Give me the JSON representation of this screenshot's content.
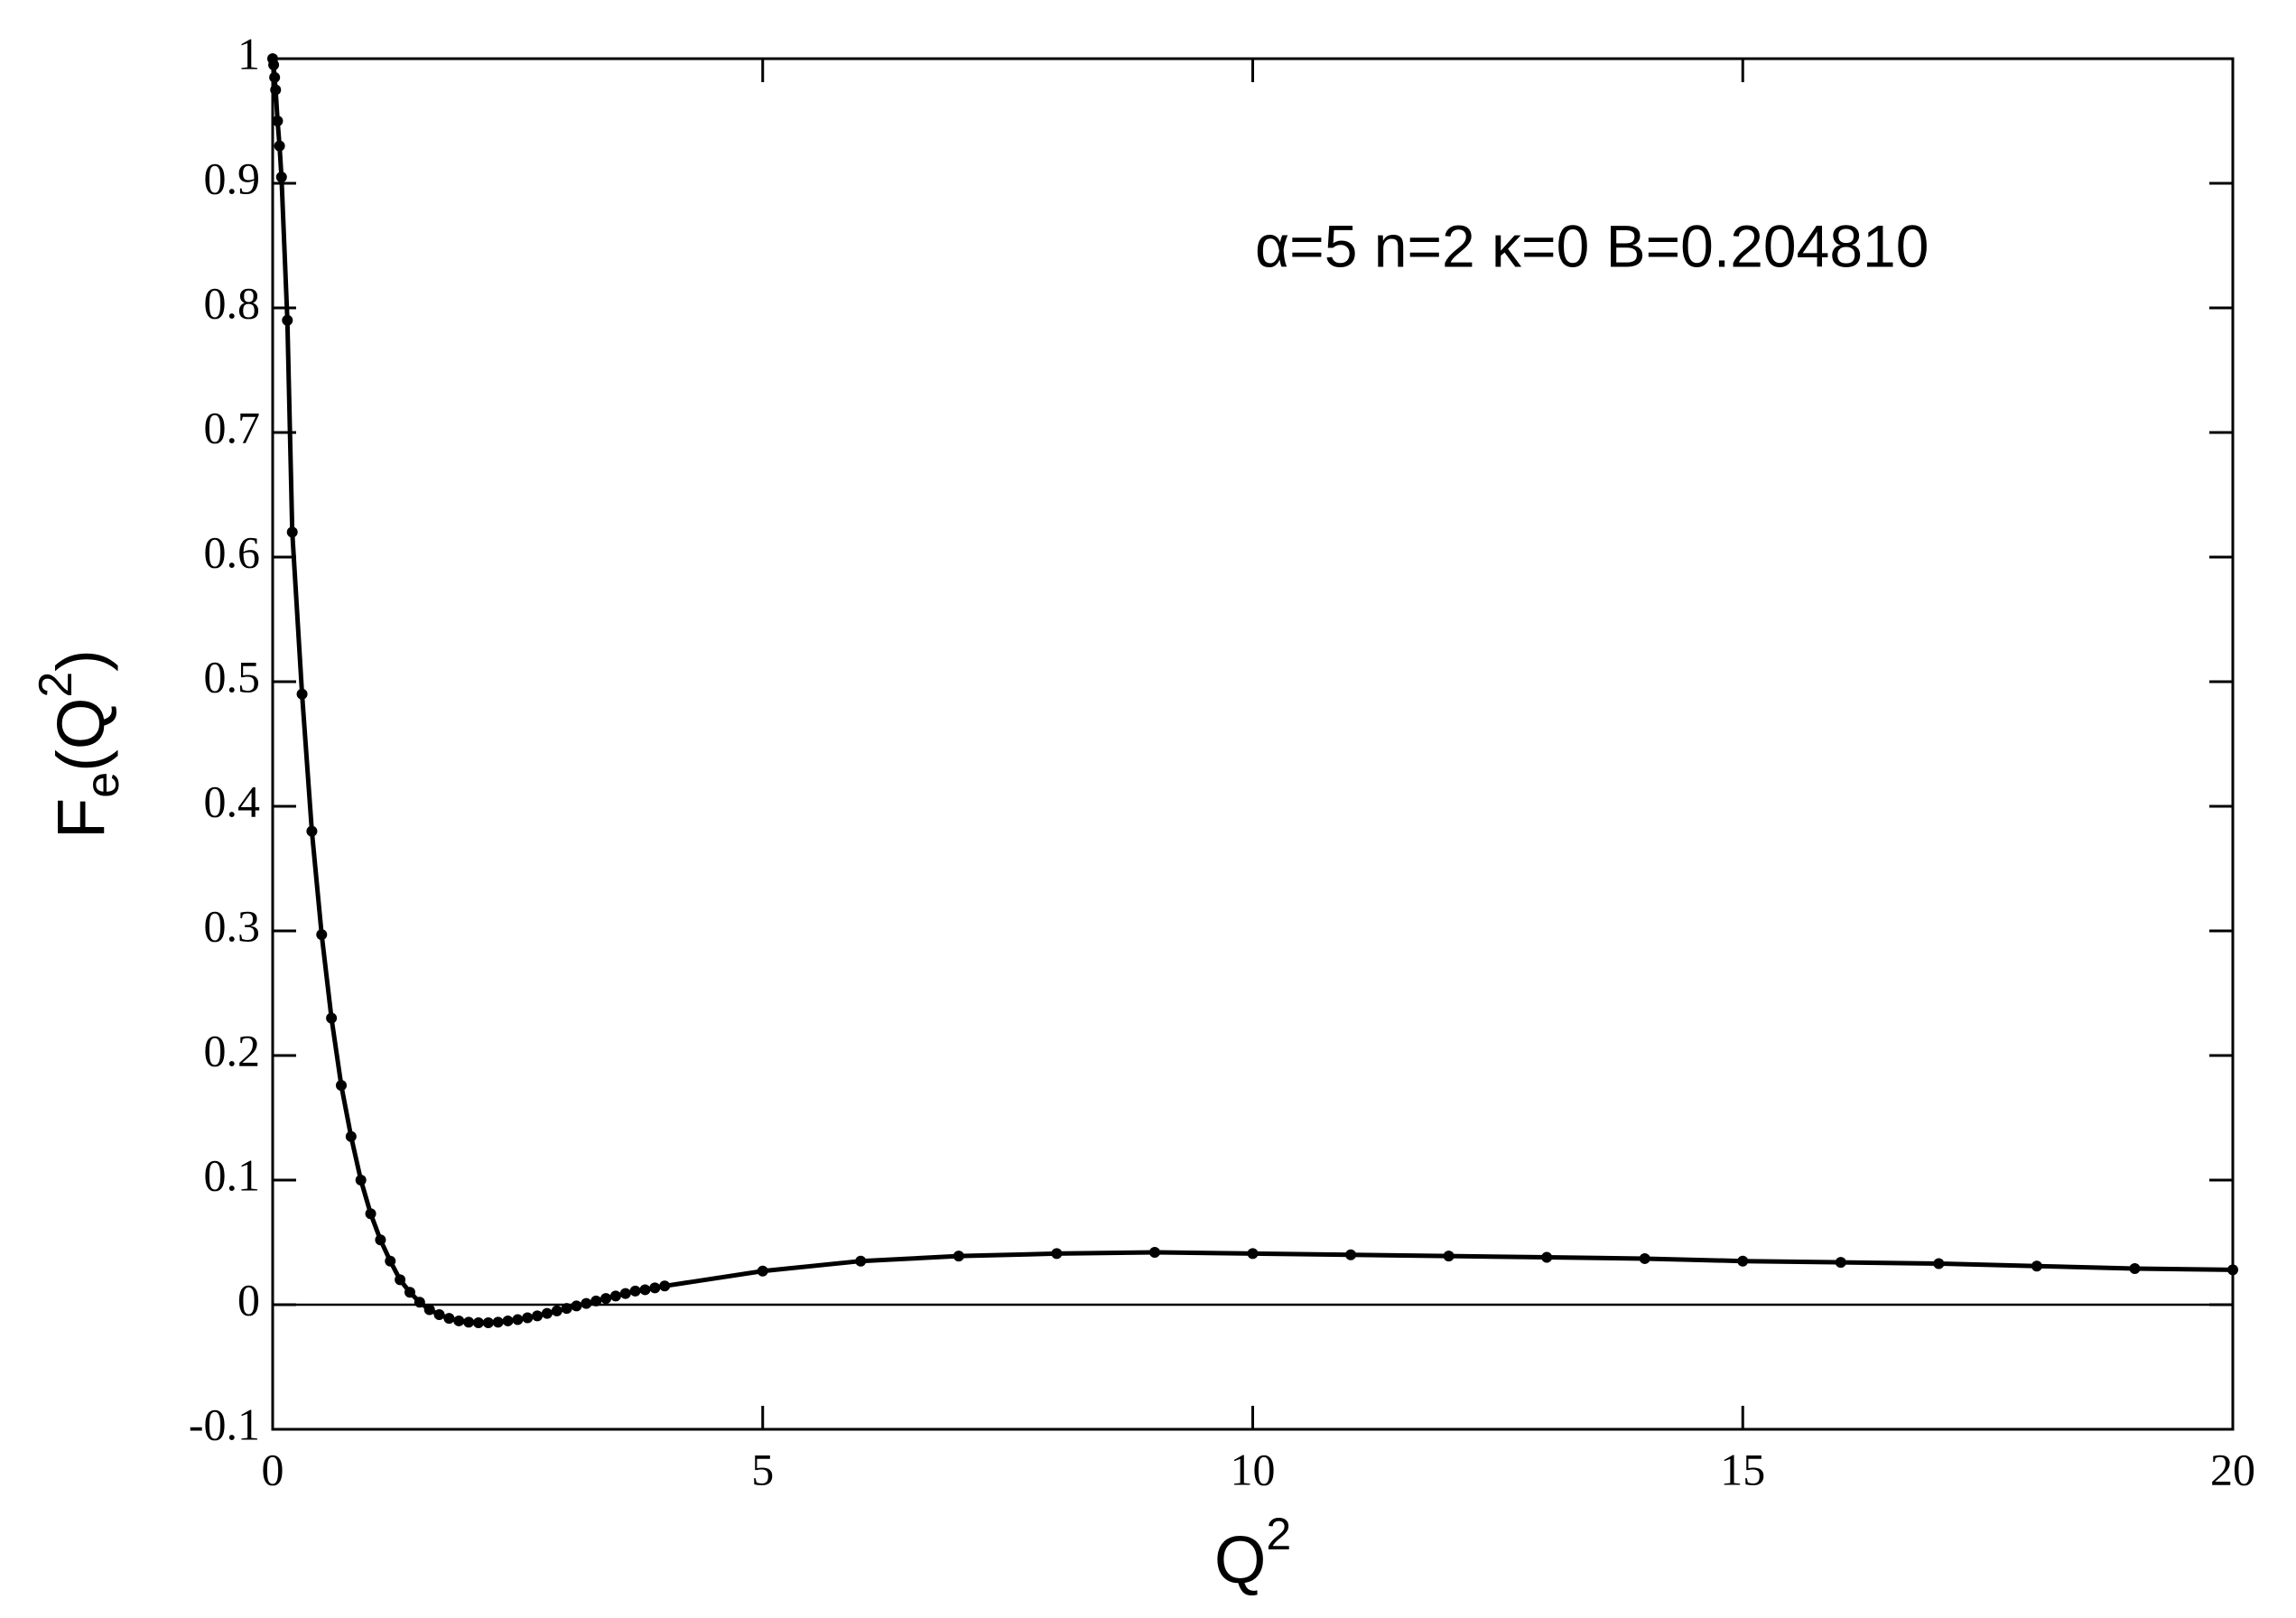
{
  "chart_data": {
    "type": "line",
    "annotation": "α=5 n=2 κ=0 B=0.204810",
    "xlabel": [
      "Q",
      "2"
    ],
    "ylabel": [
      "F",
      "e",
      "(Q",
      "2",
      ")"
    ],
    "x": [
      0,
      0.01,
      0.02,
      0.03,
      0.05,
      0.07,
      0.09,
      0.15,
      0.2,
      0.3,
      0.4,
      0.5,
      0.6,
      0.7,
      0.8,
      0.9,
      1.0,
      1.1,
      1.2,
      1.3,
      1.4,
      1.5,
      1.6,
      1.7,
      1.8,
      1.9,
      2.0,
      2.1,
      2.2,
      2.3,
      2.4,
      2.5,
      2.6,
      2.7,
      2.8,
      2.9,
      3.0,
      3.1,
      3.2,
      3.3,
      3.4,
      3.5,
      3.6,
      3.7,
      3.8,
      3.9,
      4.0,
      5,
      6,
      7,
      8,
      9,
      10,
      11,
      12,
      13,
      14,
      15,
      16,
      17,
      18,
      19,
      20
    ],
    "series": [
      {
        "name": "F_e",
        "color": "#000000",
        "values": [
          1.0,
          0.995,
          0.985,
          0.975,
          0.95,
          0.93,
          0.905,
          0.79,
          0.62,
          0.49,
          0.38,
          0.297,
          0.23,
          0.176,
          0.135,
          0.1,
          0.073,
          0.052,
          0.035,
          0.02,
          0.01,
          0.002,
          -0.004,
          -0.008,
          -0.011,
          -0.013,
          -0.014,
          -0.0145,
          -0.0145,
          -0.014,
          -0.013,
          -0.012,
          -0.0105,
          -0.009,
          -0.007,
          -0.005,
          -0.003,
          -0.001,
          0.001,
          0.003,
          0.005,
          0.007,
          0.009,
          0.011,
          0.012,
          0.0135,
          0.015,
          0.027,
          0.035,
          0.039,
          0.041,
          0.042,
          0.041,
          0.04,
          0.039,
          0.038,
          0.037,
          0.035,
          0.034,
          0.033,
          0.031,
          0.029,
          0.028
        ]
      }
    ],
    "xlim": [
      0,
      20
    ],
    "xticks": [
      0,
      5,
      10,
      15,
      20
    ],
    "ylim": [
      -0.1,
      1
    ],
    "yticks": [
      -0.1,
      0,
      0.1,
      0.2,
      0.3,
      0.4,
      0.5,
      0.6,
      0.7,
      0.8,
      0.9,
      1
    ],
    "zero_line": true,
    "markers": true
  }
}
